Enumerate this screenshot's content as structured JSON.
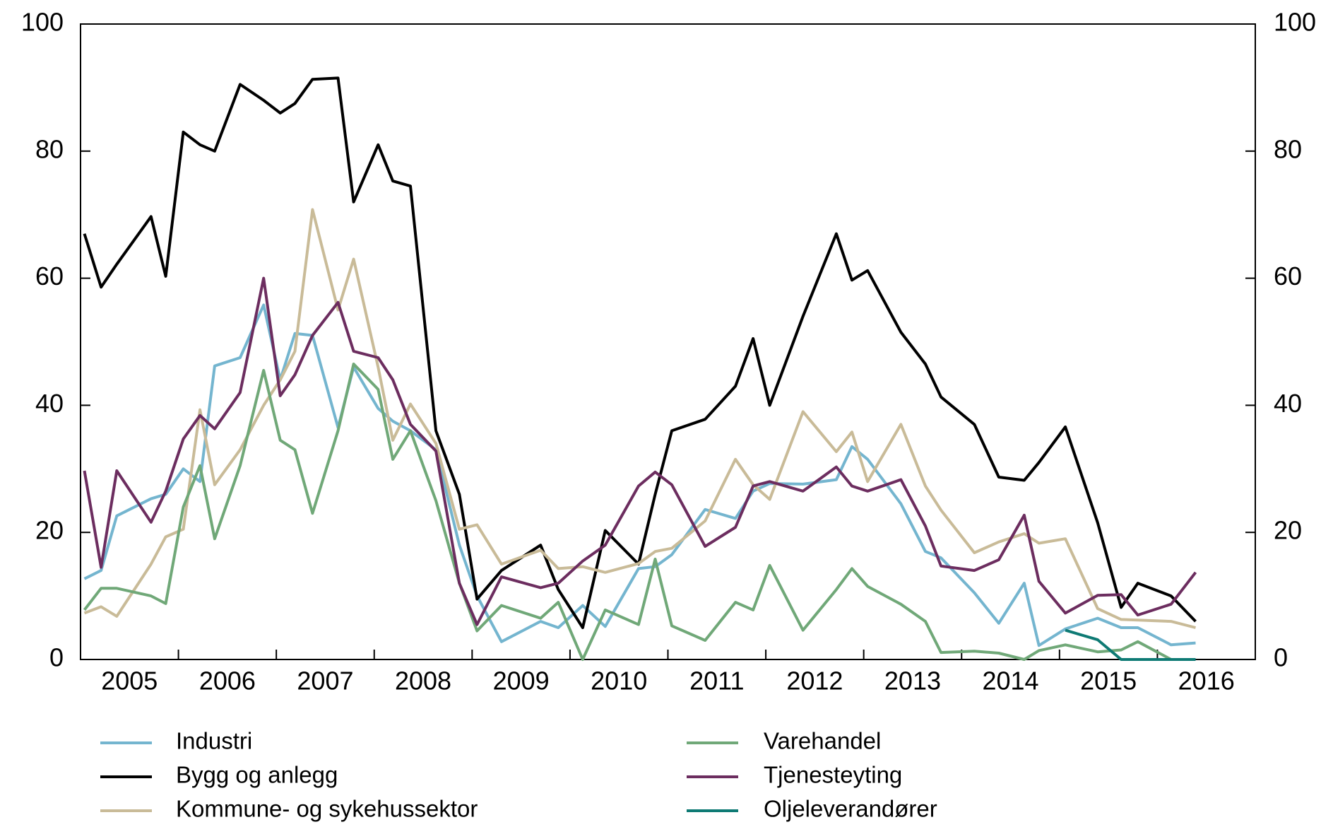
{
  "chart_data": {
    "type": "line",
    "x": [
      2005.04,
      2005.21,
      2005.37,
      2005.72,
      2005.87,
      2006.05,
      2006.22,
      2006.37,
      2006.63,
      2006.87,
      2007.04,
      2007.19,
      2007.37,
      2007.63,
      2007.79,
      2008.04,
      2008.19,
      2008.37,
      2008.63,
      2008.87,
      2009.05,
      2009.3,
      2009.7,
      2009.88,
      2010.13,
      2010.36,
      2010.7,
      2010.87,
      2011.04,
      2011.38,
      2011.69,
      2011.87,
      2012.04,
      2012.38,
      2012.72,
      2012.88,
      2013.04,
      2013.38,
      2013.63,
      2013.79,
      2014.13,
      2014.38,
      2014.64,
      2014.79,
      2015.06,
      2015.39,
      2015.63,
      2015.8,
      2016.14,
      2016.39
    ],
    "series": [
      {
        "name": "Industri",
        "color": "#74b5cf",
        "values": [
          12.7,
          14,
          22.6,
          25.3,
          26,
          30,
          28,
          46.2,
          47.5,
          55.8,
          44,
          51.3,
          51,
          36.5,
          46,
          39.5,
          37.5,
          36,
          33,
          18,
          10,
          2.8,
          6,
          5,
          8.5,
          5.2,
          14.3,
          14.6,
          16.5,
          23.6,
          22.2,
          26.5,
          27.7,
          27.6,
          28.3,
          33.5,
          31.5,
          24.5,
          17,
          16,
          10.5,
          5.7,
          12,
          2.2,
          4.8,
          6.5,
          5,
          5,
          2.3,
          2.6
        ]
      },
      {
        "name": "Bygg og anlegg",
        "color": "#000000",
        "values": [
          67,
          58.6,
          62.2,
          69.7,
          60.3,
          83,
          81,
          80,
          90.5,
          88,
          86,
          87.5,
          91.3,
          91.5,
          72,
          81,
          75.3,
          74.5,
          36,
          26,
          9.5,
          14,
          18,
          11,
          5,
          20.3,
          15,
          26,
          36,
          37.8,
          43,
          50.5,
          40,
          54,
          67,
          59.7,
          61.2,
          51.5,
          46.5,
          41.3,
          37,
          28.7,
          28.2,
          31,
          36.6,
          21.5,
          8.2,
          12,
          10,
          6
        ]
      },
      {
        "name": "Kommune- og sykehussektor",
        "color": "#c9bb98",
        "values": [
          7.3,
          8.3,
          6.8,
          15,
          19.3,
          20.5,
          39.3,
          27.5,
          33,
          40,
          44,
          48.5,
          70.8,
          55,
          63,
          46,
          34.5,
          40.2,
          34,
          20.5,
          21.2,
          15,
          17.2,
          14.3,
          14.6,
          13.7,
          15.1,
          17,
          17.5,
          21.8,
          31.5,
          27.5,
          25.2,
          39,
          32.7,
          35.8,
          28,
          37,
          27.3,
          23.5,
          16.8,
          18.5,
          19.8,
          18.3,
          19,
          8,
          6.3,
          6.2,
          6,
          5
        ]
      },
      {
        "name": "Varehandel",
        "color": "#70a878",
        "values": [
          7.8,
          11.2,
          11.2,
          10,
          8.8,
          24,
          30.5,
          19,
          30.5,
          45.5,
          34.5,
          33,
          23,
          36,
          46.5,
          42.5,
          31.5,
          36,
          25,
          12,
          4.5,
          8.5,
          6.5,
          9,
          0,
          7.8,
          5.5,
          15.8,
          5.3,
          3,
          9,
          7.8,
          14.8,
          4.6,
          11,
          14.3,
          11.5,
          8.7,
          6,
          1.1,
          1.3,
          1,
          0,
          1.4,
          2.3,
          1.2,
          1.5,
          2.8,
          0,
          0
        ]
      },
      {
        "name": "Tjenesteyting",
        "color": "#6c2d5f",
        "values": [
          29.7,
          14.5,
          29.7,
          21.6,
          26.5,
          34.7,
          38.4,
          36.3,
          42,
          60,
          41.5,
          44.8,
          51,
          56.2,
          48.5,
          47.5,
          44,
          37,
          32.8,
          12,
          5.5,
          13,
          11.3,
          12,
          15.5,
          18,
          27.3,
          29.5,
          27.5,
          17.8,
          20.8,
          27.3,
          28,
          26.5,
          30.3,
          27.3,
          26.5,
          28.3,
          21,
          14.7,
          14,
          15.7,
          22.7,
          12.3,
          7.3,
          10.1,
          10.2,
          7,
          8.7,
          13.7
        ]
      },
      {
        "name": "Oljeleverandører",
        "color": "#0e7a74",
        "values": [
          null,
          null,
          null,
          null,
          null,
          null,
          null,
          null,
          null,
          null,
          null,
          null,
          null,
          null,
          null,
          null,
          null,
          null,
          null,
          null,
          null,
          null,
          null,
          null,
          null,
          null,
          null,
          null,
          null,
          null,
          null,
          null,
          null,
          null,
          null,
          null,
          null,
          null,
          null,
          null,
          null,
          null,
          null,
          null,
          4.6,
          3.1,
          0,
          0,
          0,
          0
        ]
      }
    ],
    "xlim": [
      2005,
      2017
    ],
    "xticks": [
      {
        "value": 2005.5,
        "label": "2005"
      },
      {
        "value": 2006.5,
        "label": "2006"
      },
      {
        "value": 2007.5,
        "label": "2007"
      },
      {
        "value": 2008.5,
        "label": "2008"
      },
      {
        "value": 2009.5,
        "label": "2009"
      },
      {
        "value": 2010.5,
        "label": "2010"
      },
      {
        "value": 2011.5,
        "label": "2011"
      },
      {
        "value": 2012.5,
        "label": "2012"
      },
      {
        "value": 2013.5,
        "label": "2013"
      },
      {
        "value": 2014.5,
        "label": "2014"
      },
      {
        "value": 2015.5,
        "label": "2015"
      },
      {
        "value": 2016.5,
        "label": "2016"
      }
    ],
    "ylim": [
      0,
      100
    ],
    "yticks": [
      0,
      20,
      40,
      60,
      80,
      100
    ],
    "y2lim": [
      0,
      100
    ],
    "y2ticks": [
      0,
      20,
      40,
      60,
      80,
      100
    ],
    "grid": false
  }
}
